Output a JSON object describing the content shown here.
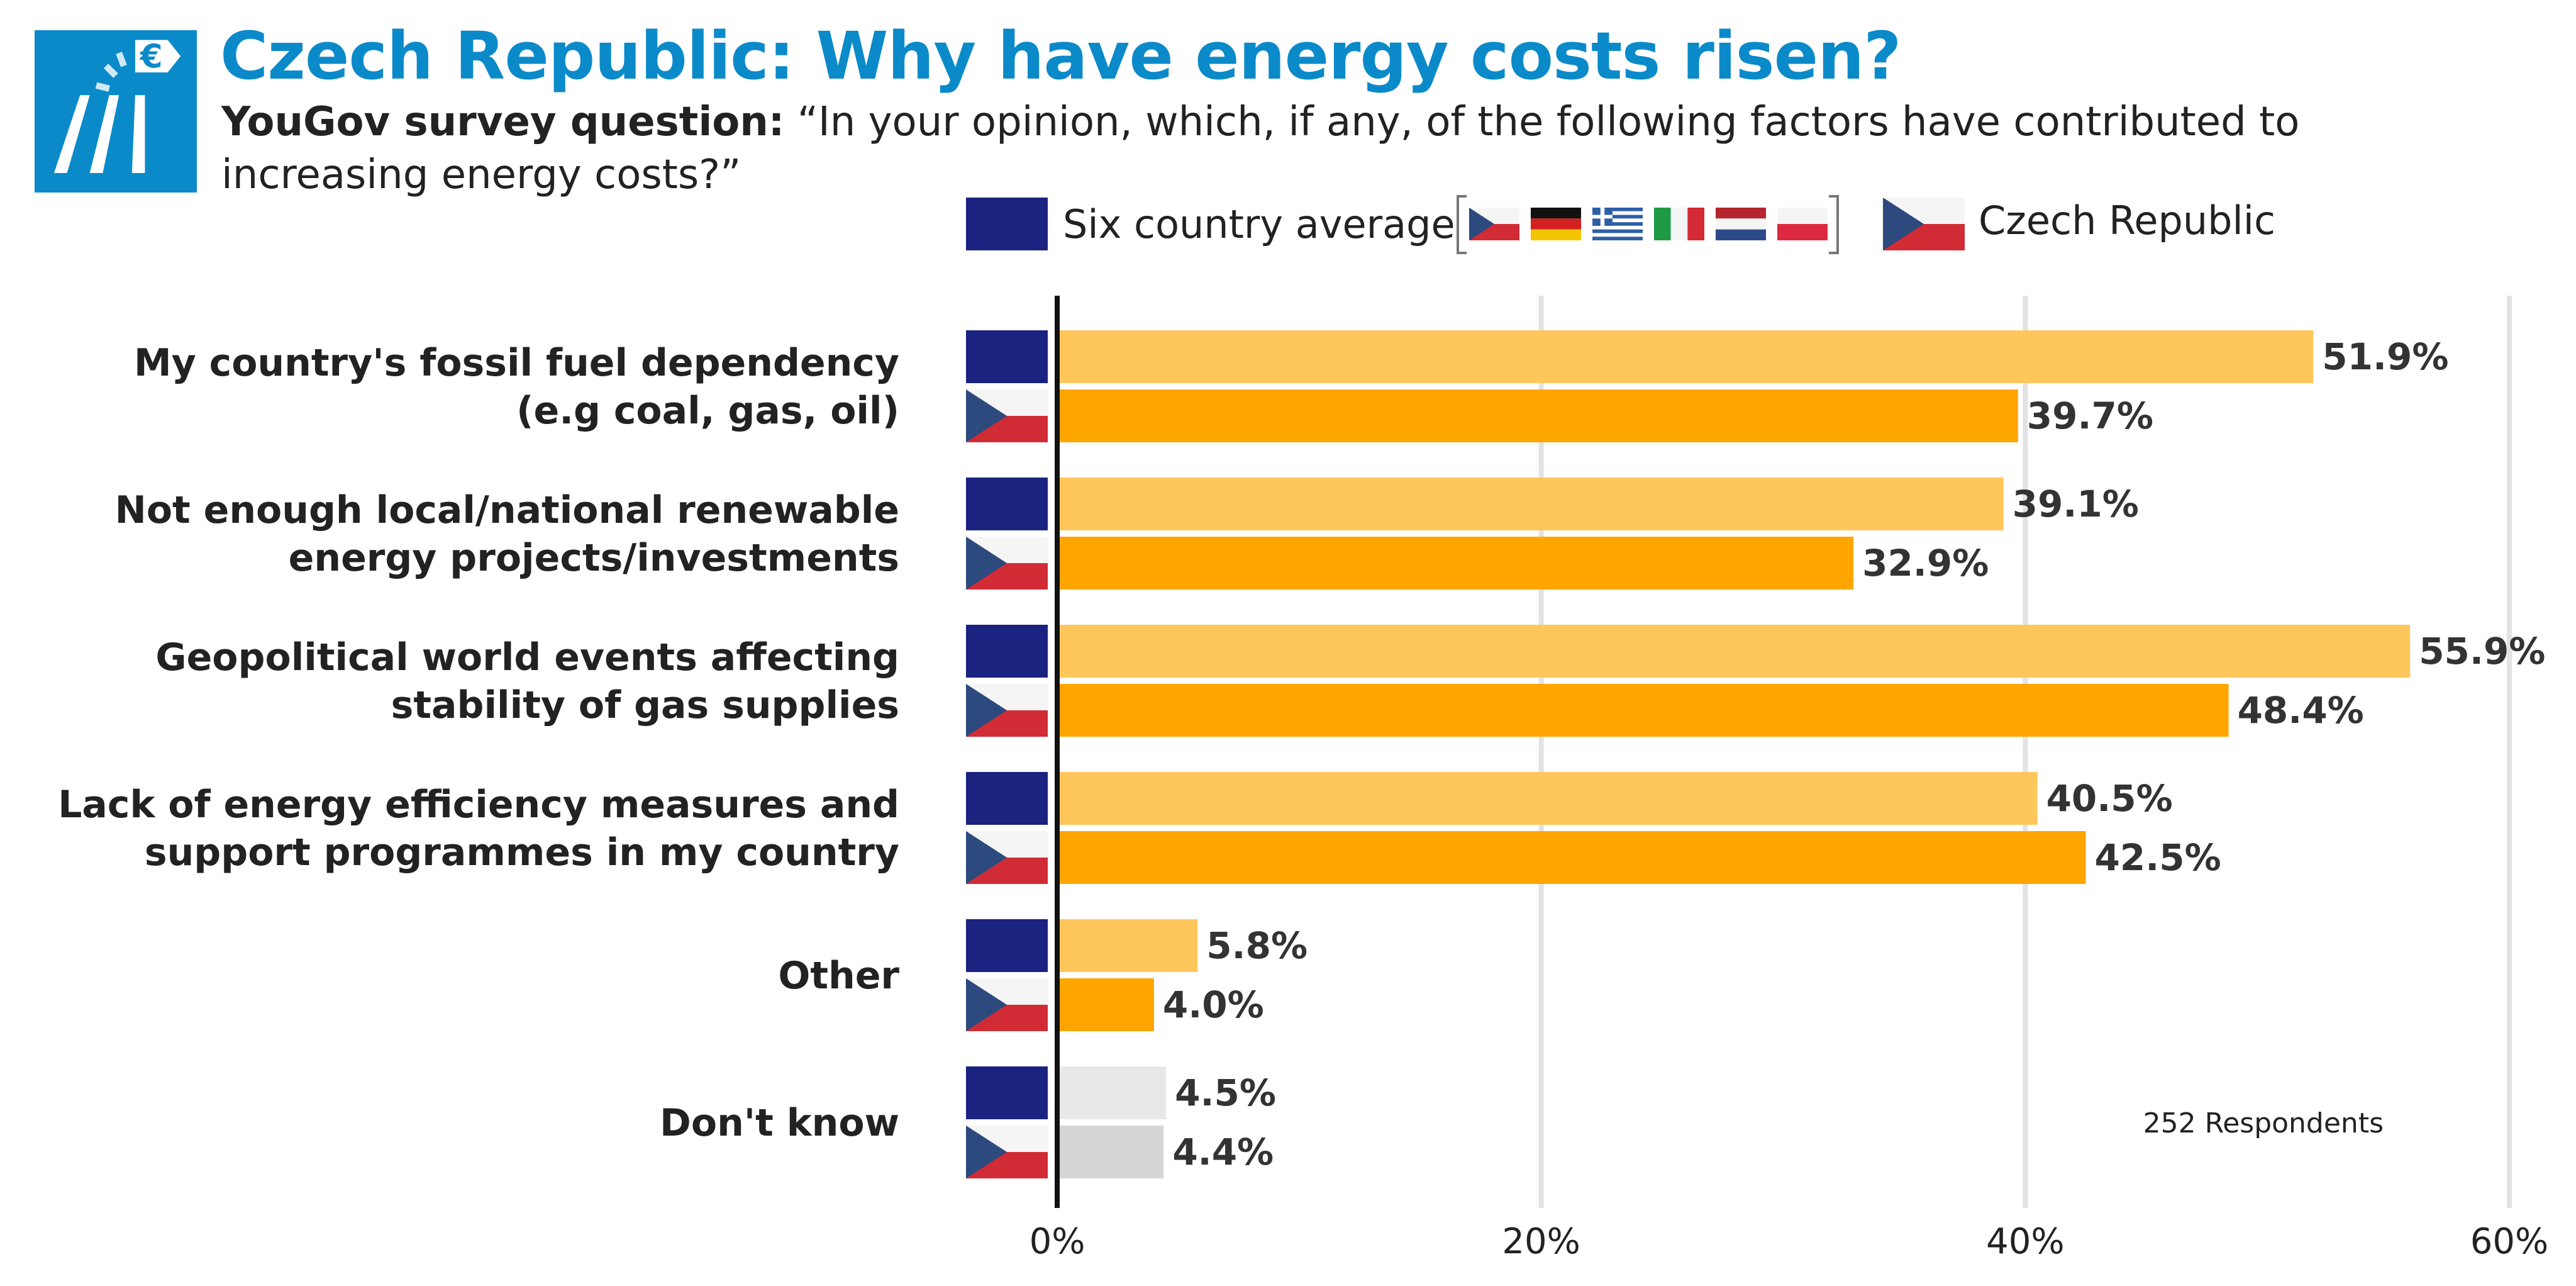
{
  "header": {
    "title": "Czech Republic: Why have energy costs risen?",
    "subtitle_bold": "YouGov survey question:",
    "subtitle_text": "“In your opinion, which, if any, of the following factors have contributed to increasing energy costs?”"
  },
  "icons": {
    "logo": "energy-price-euro-icon",
    "average": "eu-flag-icon",
    "country": "czech-flag-icon",
    "legend_flags": [
      "czech-flag-icon",
      "german-flag-icon",
      "greek-flag-icon",
      "italian-flag-icon",
      "dutch-flag-icon",
      "polish-flag-icon"
    ]
  },
  "colors": {
    "brand": "#0b8ac9",
    "average_bar": "#ffc65c",
    "country_bar": "#ffa500",
    "average_dontknow": "#e8e8e8",
    "country_dontknow": "#d6d6d6",
    "eu_blue": "#1a2380"
  },
  "chart_data": {
    "type": "bar",
    "orientation": "horizontal",
    "categories": [
      [
        "My country's fossil fuel dependency",
        "(e.g coal, gas, oil)"
      ],
      [
        "Not enough local/national renewable",
        "energy projects/investments"
      ],
      [
        "Geopolitical world events affecting",
        "stability of gas supplies"
      ],
      [
        "Lack of energy efficiency measures and",
        "support programmes in my country"
      ],
      [
        "Other"
      ],
      [
        "Don't know"
      ]
    ],
    "series": [
      {
        "name": "Six country average",
        "values": [
          51.9,
          39.1,
          55.9,
          40.5,
          5.8,
          4.5
        ]
      },
      {
        "name": "Czech Republic",
        "values": [
          39.7,
          32.9,
          48.4,
          42.5,
          4.0,
          4.4
        ]
      }
    ],
    "value_labels": {
      "average": [
        "51.9%",
        "39.1%",
        "55.9%",
        "40.5%",
        "5.8%",
        "4.5%"
      ],
      "country": [
        "39.7%",
        "32.9%",
        "48.4%",
        "42.5%",
        "4.0%",
        "4.4%"
      ]
    },
    "xlim": [
      0,
      60
    ],
    "xticks": [
      0,
      20,
      40,
      60
    ],
    "xtick_labels": [
      "0%",
      "20%",
      "40%",
      "60%"
    ],
    "grid": true,
    "legend_position": "top",
    "note": "252 Respondents"
  }
}
